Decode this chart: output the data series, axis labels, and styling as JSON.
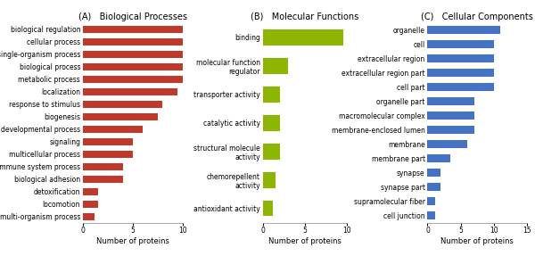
{
  "A_title": "(A)   Biological Processes",
  "A_categories": [
    "biological regulation",
    "cellular process",
    "single-organism process",
    "biological process",
    "metabolic process",
    "localization",
    "response to stimulus",
    "biogenesis",
    "developmental process",
    "signaling",
    "multicellular process",
    "immune system process",
    "biological adhesion",
    "detoxification",
    "locomotion",
    "multi-organism process"
  ],
  "A_values": [
    10,
    10,
    10,
    10,
    10,
    9.5,
    8,
    7.5,
    6,
    5,
    5,
    4,
    4,
    1.5,
    1.5,
    1.2
  ],
  "A_color": "#c0392b",
  "A_xlim": [
    0,
    10
  ],
  "A_xticks": [
    0,
    5,
    10
  ],
  "A_xlabel": "Number of proteins",
  "B_title": "(B)   Molecular Functions",
  "B_categories": [
    "binding",
    "molecular function\nregulator",
    "transporter activity",
    "catalytic activity",
    "structural molecule\nactivity",
    "chemorepellent\nactivity",
    "antioxidant activity"
  ],
  "B_values": [
    9.5,
    3,
    2,
    2,
    2,
    1.5,
    1.2
  ],
  "B_color": "#8db600",
  "B_xlim": [
    0,
    10
  ],
  "B_xticks": [
    0,
    5,
    10
  ],
  "B_xlabel": "Number of proteins",
  "C_title": "(C)   Cellular Components",
  "C_categories": [
    "organelle",
    "cell",
    "extracellular region",
    "extracellular region part",
    "cell part",
    "organelle part",
    "macromolecular complex",
    "membrane-enclosed lumen",
    "membrane",
    "membrane part",
    "synapse",
    "synapse part",
    "supramolecular fiber",
    "cell junction"
  ],
  "C_values": [
    11,
    10,
    10,
    10,
    10,
    7,
    7,
    7,
    6,
    3.5,
    2,
    2,
    1.2,
    1.2
  ],
  "C_color": "#4472c4",
  "C_xlim": [
    0,
    15
  ],
  "C_xticks": [
    0,
    5,
    10,
    15
  ],
  "C_xlabel": "Number of proteins",
  "bg_color": "#ffffff",
  "tick_fontsize": 5.5,
  "label_fontsize": 6,
  "title_fontsize": 7,
  "bar_height": 0.55,
  "border_color": "#888888"
}
